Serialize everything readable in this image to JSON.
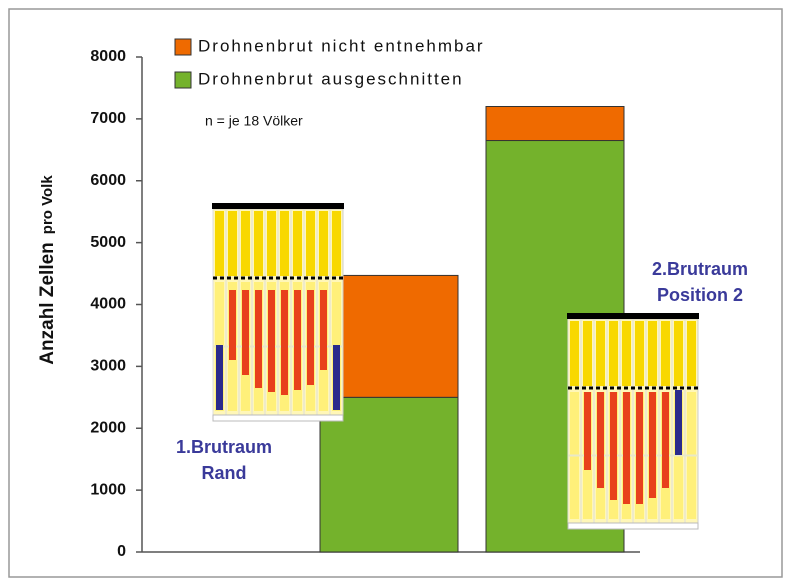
{
  "chart_data": {
    "type": "bar",
    "stacked": true,
    "categories": [
      null,
      null
    ],
    "series": [
      {
        "name": "Drohnenbrut ausgeschnitten",
        "color": "#74b22c",
        "values": [
          2500,
          6650
        ]
      },
      {
        "name": "Drohnenbrut nicht entnehmbar",
        "color": "#ef6a00",
        "values": [
          1970,
          550
        ]
      }
    ],
    "ylabel": "Anzahl Zellen",
    "ylabel_suffix": "pro Volk",
    "ylim": [
      0,
      8000
    ],
    "yticks": [
      0,
      1000,
      2000,
      3000,
      4000,
      5000,
      6000,
      7000,
      8000
    ],
    "annotations": [
      {
        "lines": [
          "n = je 18 Völker"
        ]
      },
      {
        "lines": [
          "1.Brutraum",
          "Rand"
        ]
      },
      {
        "lines": [
          "2.Brutraum",
          "Position 2"
        ]
      }
    ]
  }
}
